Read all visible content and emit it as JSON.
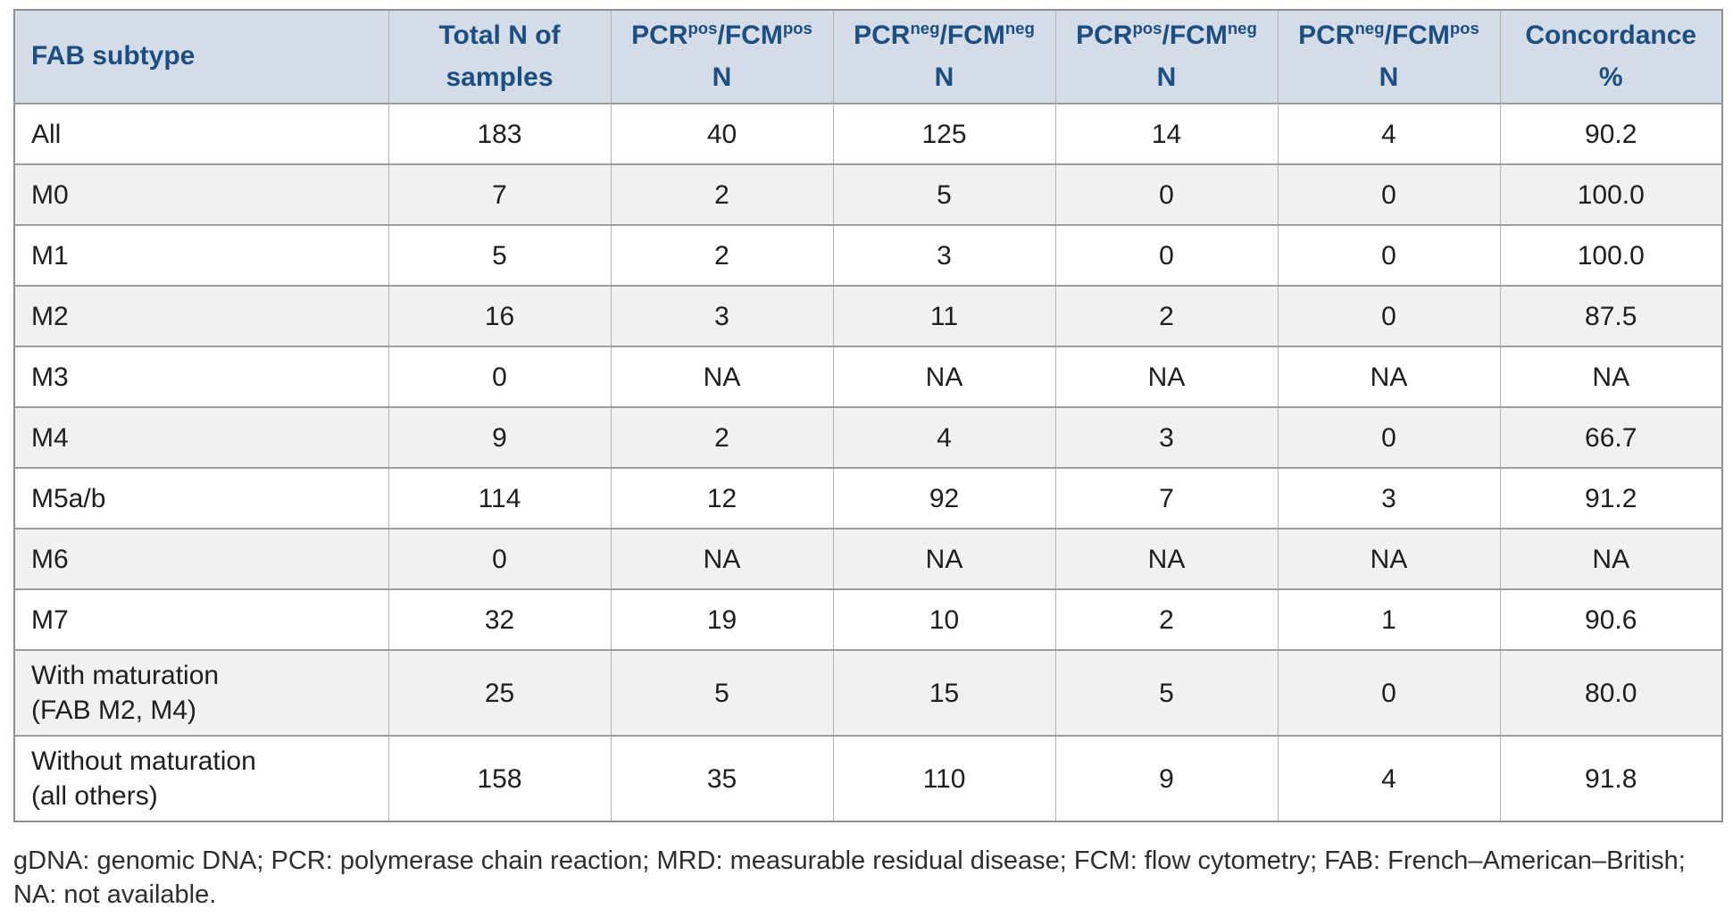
{
  "colors": {
    "header_bg": "#d4dde7",
    "header_text": "#1c4e82",
    "stripe_bg": "#f1f1f1",
    "row_border": "#9c9c9c",
    "col_border": "#b3b3b3",
    "body_text": "#1e1e1e"
  },
  "table": {
    "columns": [
      {
        "id": "fab-subtype",
        "align": "left",
        "lines": [
          "FAB subtype"
        ]
      },
      {
        "id": "total-n",
        "lines": [
          "Total N of",
          "samples"
        ]
      },
      {
        "id": "pcrpos-fcmpos",
        "lines": [
          "PCR^{pos}/FCM^{pos}",
          "N"
        ]
      },
      {
        "id": "pcrneg-fcmneg",
        "lines": [
          "PCR^{neg}/FCM^{neg}",
          "N"
        ]
      },
      {
        "id": "pcrpos-fcmneg",
        "lines": [
          "PCR^{pos}/FCM^{neg}",
          "N"
        ]
      },
      {
        "id": "pcrneg-fcmpos",
        "lines": [
          "PCR^{neg}/FCM^{pos}",
          "N"
        ]
      },
      {
        "id": "concordance",
        "lines": [
          "Concordance",
          "%"
        ]
      }
    ],
    "rows": [
      {
        "cells": [
          "All",
          "183",
          "40",
          "125",
          "14",
          "4",
          "90.2"
        ]
      },
      {
        "cells": [
          "M0",
          "7",
          "2",
          "5",
          "0",
          "0",
          "100.0"
        ]
      },
      {
        "cells": [
          "M1",
          "5",
          "2",
          "3",
          "0",
          "0",
          "100.0"
        ]
      },
      {
        "cells": [
          "M2",
          "16",
          "3",
          "11",
          "2",
          "0",
          "87.5"
        ]
      },
      {
        "cells": [
          "M3",
          "0",
          "NA",
          "NA",
          "NA",
          "NA",
          "NA"
        ]
      },
      {
        "cells": [
          "M4",
          "9",
          "2",
          "4",
          "3",
          "0",
          "66.7"
        ]
      },
      {
        "cells": [
          "M5a/b",
          "114",
          "12",
          "92",
          "7",
          "3",
          "91.2"
        ]
      },
      {
        "cells": [
          "M6",
          "0",
          "NA",
          "NA",
          "NA",
          "NA",
          "NA"
        ]
      },
      {
        "cells": [
          "M7",
          "32",
          "19",
          "10",
          "2",
          "1",
          "90.6"
        ]
      },
      {
        "cells": [
          [
            "With maturation",
            "(FAB M2, M4)"
          ],
          "25",
          "5",
          "15",
          "5",
          "0",
          "80.0"
        ]
      },
      {
        "cells": [
          [
            "Without maturation",
            "(all others)"
          ],
          "158",
          "35",
          "110",
          "9",
          "4",
          "91.8"
        ]
      }
    ]
  },
  "footnote": {
    "lines": [
      "gDNA: genomic DNA; PCR: polymerase chain reaction; MRD: measurable residual disease; FCM: flow cytometry; FAB: French–American–British;",
      "NA: not available."
    ]
  }
}
